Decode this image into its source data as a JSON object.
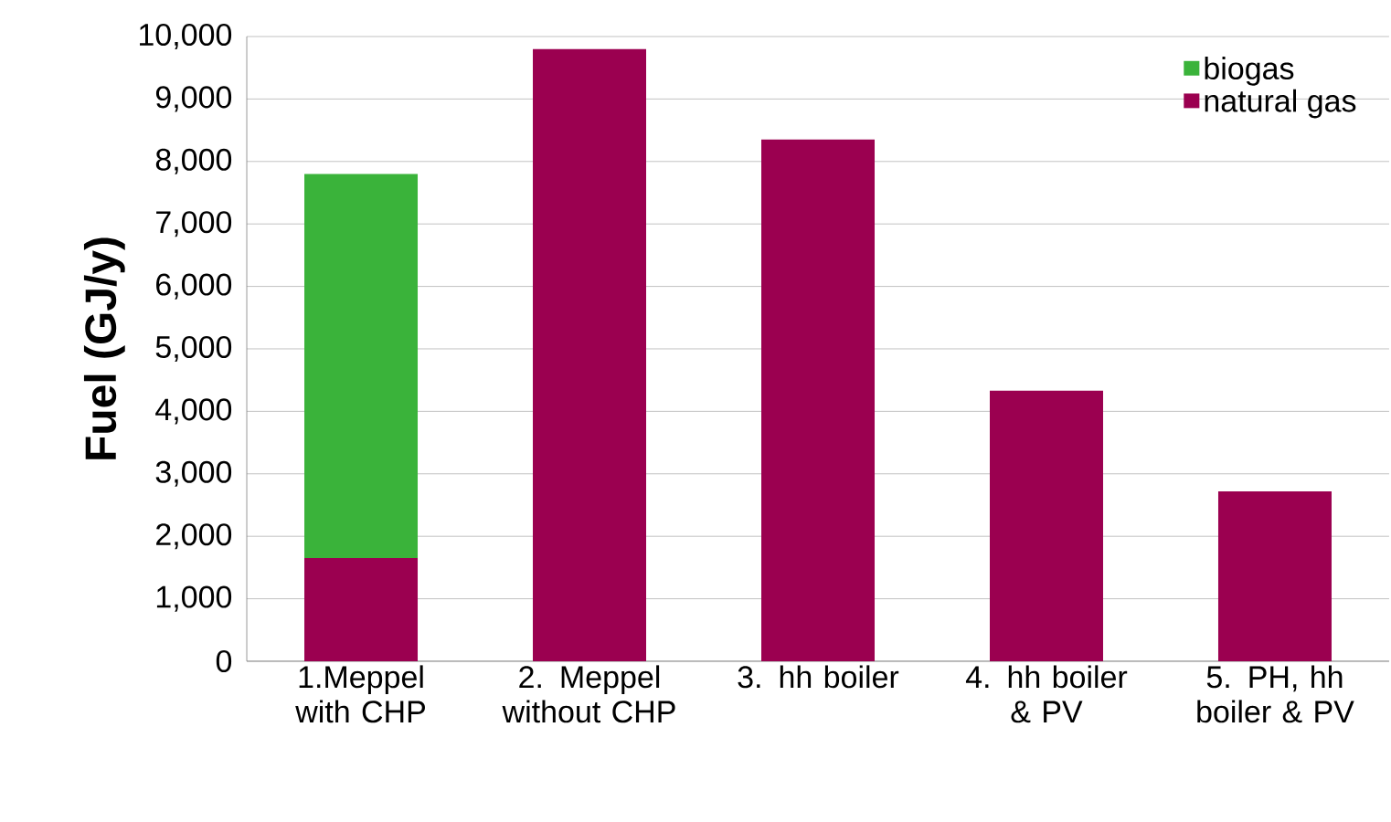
{
  "chart_data": {
    "type": "bar",
    "stacked": true,
    "ylabel": "Fuel (GJ/y)",
    "categories": [
      "1.Meppel with CHP",
      "2. Meppel without CHP",
      "3. hh boiler",
      "4. hh boiler & PV",
      "5. PH, hh boiler & PV"
    ],
    "series": [
      {
        "name": "natural gas",
        "color": "#9b0050",
        "values": [
          1650,
          9800,
          8350,
          4330,
          2720
        ]
      },
      {
        "name": "biogas",
        "color": "#3ab33a",
        "values": [
          6150,
          null,
          null,
          null,
          null
        ]
      }
    ],
    "ylim": [
      0,
      10000
    ],
    "yticks": [
      0,
      {
        "value": 1000,
        "label": "1,000"
      },
      {
        "value": 2000,
        "label": "2,000"
      },
      {
        "value": 3000,
        "label": "3,000"
      },
      {
        "value": 4000,
        "label": "4,000"
      },
      {
        "value": 5000,
        "label": "5,000"
      },
      {
        "value": 6000,
        "label": "6,000"
      },
      {
        "value": 7000,
        "label": "7,000"
      },
      {
        "value": 8000,
        "label": "8,000"
      },
      {
        "value": 9000,
        "label": "9,000"
      },
      {
        "value": 10000,
        "label": "10,000"
      }
    ],
    "grid": "y",
    "legend": "top right"
  }
}
